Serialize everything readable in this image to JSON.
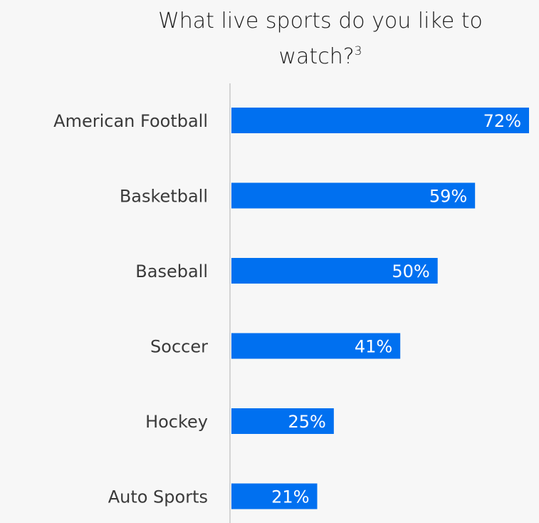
{
  "title": {
    "text": "What live sports do you like to watch?",
    "footnote": "3"
  },
  "colors": {
    "bar": "#0070f0",
    "axis": "#c8c8c8",
    "background": "#f7f7f7"
  },
  "chart_data": {
    "type": "bar",
    "orientation": "horizontal",
    "title": "What live sports do you like to watch?",
    "categories": [
      "American Football",
      "Basketball",
      "Baseball",
      "Soccer",
      "Hockey",
      "Auto Sports"
    ],
    "values": [
      72,
      59,
      50,
      41,
      25,
      21
    ],
    "value_labels": [
      "72%",
      "59%",
      "50%",
      "41%",
      "25%",
      "21%"
    ],
    "unit": "%",
    "xlim": [
      0,
      72
    ],
    "grid": false,
    "legend": "none"
  }
}
